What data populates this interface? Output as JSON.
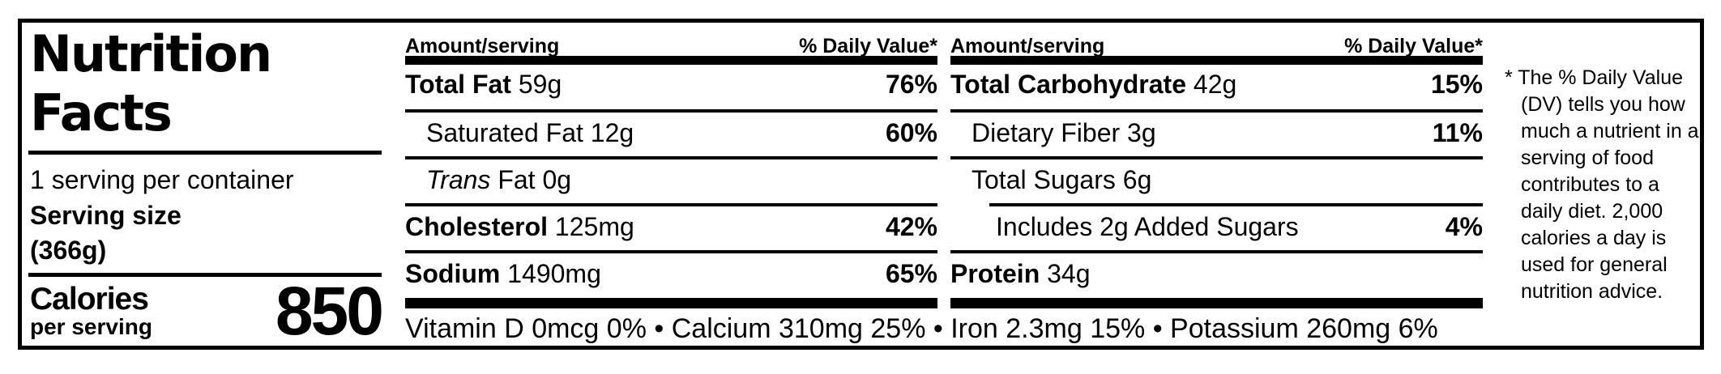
{
  "colors": {
    "text": "#000000",
    "background": "#ffffff"
  },
  "label": {
    "title_line1": "Nutrition",
    "title_line2": "Facts",
    "servings_per_container": "1 serving per container",
    "serving_size_label": "Serving size",
    "serving_size_value": "(366g)",
    "calories_label": "Calories",
    "calories_sublabel": "per serving",
    "calories_value": "850",
    "column_header_left": "Amount/serving",
    "column_header_right": "% Daily Value*",
    "columns": [
      {
        "rows": [
          {
            "name": "Total Fat",
            "amount": "59g",
            "dv": "76%"
          },
          {
            "name": "Saturated Fat",
            "amount": "12g",
            "dv": "60%"
          },
          {
            "name": "Trans",
            "amount": "Fat 0g",
            "dv": ""
          },
          {
            "name": "Cholesterol",
            "amount": "125mg",
            "dv": "42%"
          },
          {
            "name": "Sodium",
            "amount": "1490mg",
            "dv": "65%"
          }
        ]
      },
      {
        "rows": [
          {
            "name": "Total Carbohydrate",
            "amount": "42g",
            "dv": "15%"
          },
          {
            "name": "Dietary Fiber",
            "amount": "3g",
            "dv": "11%"
          },
          {
            "name": "Total Sugars",
            "amount": "6g",
            "dv": ""
          },
          {
            "name": "Includes 2g Added Sugars",
            "amount": "",
            "dv": "4%"
          },
          {
            "name": "Protein",
            "amount": "34g",
            "dv": ""
          }
        ]
      }
    ],
    "micronutrients": "Vitamin D 0mcg 0% • Calcium 310mg 25% • Iron 2.3mg 15% • Potassium 260mg 6%",
    "footnote": "* The % Daily Value (DV) tells you how much a nutrient in a serving of food contributes to a daily diet. 2,000 calories a day is used for general nutrition advice."
  }
}
